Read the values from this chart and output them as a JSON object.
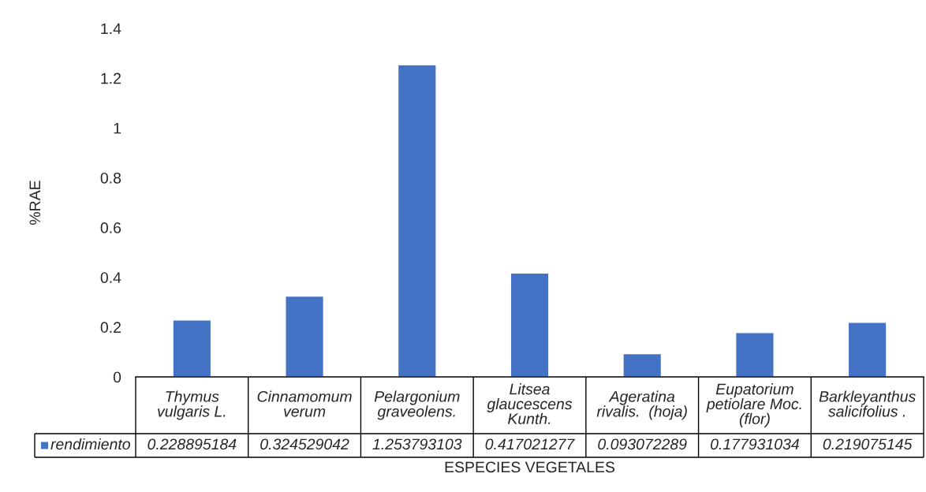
{
  "chart_data": {
    "type": "bar",
    "xlabel": "ESPECIES VEGETALES",
    "ylabel": "%RAE",
    "categories": [
      "Thymus\nvulgaris L.",
      "Cinnamomum\nverum",
      "Pelargonium\ngraveolens.",
      "Litsea\nglaucescens\nKunth.",
      "Ageratina\nrivalis.  (hoja)",
      "Eupatorium\npetiolare Moc.\n(flor)",
      "Barkleyanthus\nsalicifolius ."
    ],
    "series": [
      {
        "name": "rendimiento",
        "color": "#4472c4",
        "values": [
          0.228895184,
          0.324529042,
          1.253793103,
          0.417021277,
          0.093072289,
          0.177931034,
          0.219075145
        ]
      }
    ],
    "ylim": [
      0,
      1.4
    ],
    "yticks": [
      0,
      0.2,
      0.4,
      0.6,
      0.8,
      1,
      1.2,
      1.4
    ],
    "data_labels": true,
    "legend": "bottom left"
  }
}
